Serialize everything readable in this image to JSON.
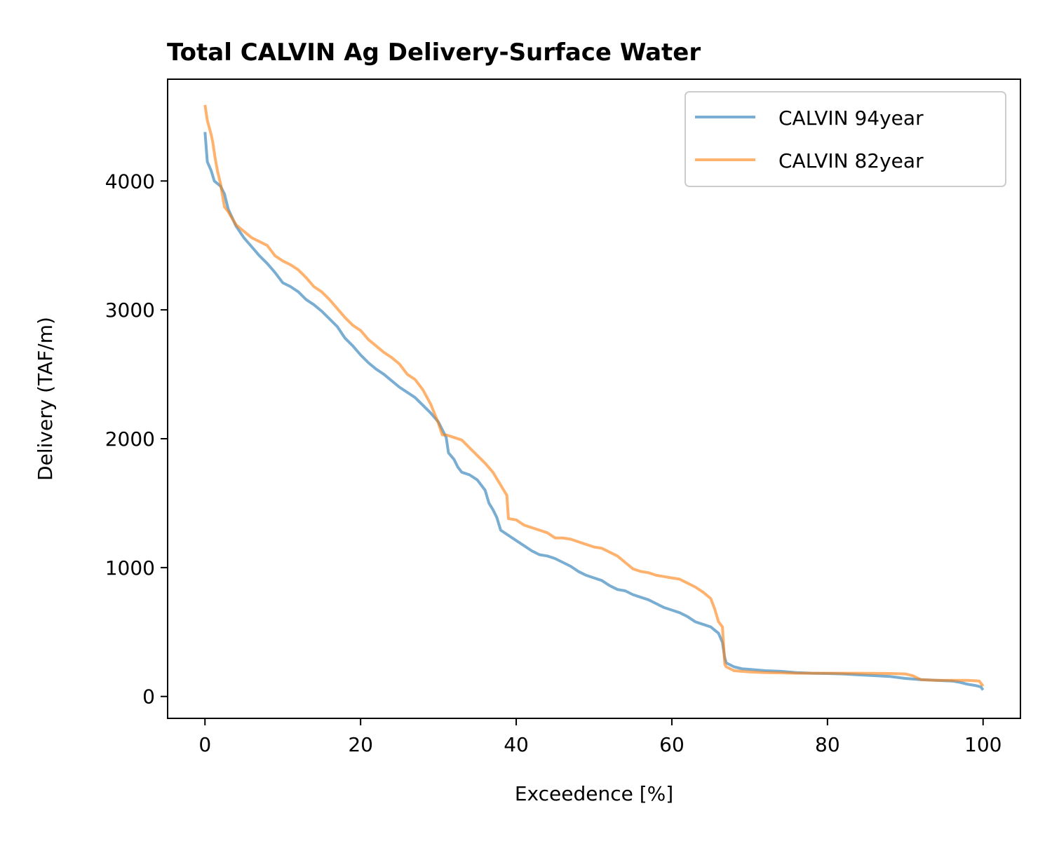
{
  "chart_data": {
    "type": "line",
    "title": "Total CALVIN Ag Delivery-Surface Water",
    "xlabel": "Exceedence [%]",
    "ylabel": "Delivery (TAF/m)",
    "xlim": [
      -4.8,
      104.8
    ],
    "ylim": [
      -170,
      4790
    ],
    "xticks": [
      0,
      20,
      40,
      60,
      80,
      100
    ],
    "yticks": [
      0,
      1000,
      2000,
      3000,
      4000
    ],
    "grid": false,
    "legend_position": "top-right",
    "series": [
      {
        "name": "CALVIN 94year",
        "color": "#1f77b4",
        "opacity": 0.6,
        "points": [
          [
            0,
            4380
          ],
          [
            0.3,
            4150
          ],
          [
            0.8,
            4080
          ],
          [
            1.2,
            4000
          ],
          [
            2,
            3960
          ],
          [
            2.5,
            3900
          ],
          [
            3,
            3780
          ],
          [
            4,
            3650
          ],
          [
            5,
            3560
          ],
          [
            6,
            3490
          ],
          [
            7,
            3420
          ],
          [
            8,
            3360
          ],
          [
            9,
            3290
          ],
          [
            10,
            3210
          ],
          [
            11,
            3180
          ],
          [
            12,
            3140
          ],
          [
            13,
            3080
          ],
          [
            14,
            3040
          ],
          [
            15,
            2990
          ],
          [
            16,
            2930
          ],
          [
            17,
            2870
          ],
          [
            18,
            2780
          ],
          [
            19,
            2720
          ],
          [
            20,
            2650
          ],
          [
            21,
            2590
          ],
          [
            22,
            2540
          ],
          [
            23,
            2500
          ],
          [
            24,
            2450
          ],
          [
            25,
            2400
          ],
          [
            26,
            2360
          ],
          [
            27,
            2320
          ],
          [
            28,
            2260
          ],
          [
            29,
            2200
          ],
          [
            30,
            2130
          ],
          [
            31,
            2010
          ],
          [
            31.3,
            1890
          ],
          [
            32,
            1840
          ],
          [
            32.5,
            1780
          ],
          [
            33,
            1740
          ],
          [
            34,
            1720
          ],
          [
            35,
            1680
          ],
          [
            36,
            1600
          ],
          [
            36.5,
            1500
          ],
          [
            37,
            1450
          ],
          [
            37.5,
            1390
          ],
          [
            38,
            1290
          ],
          [
            39,
            1250
          ],
          [
            40,
            1210
          ],
          [
            41,
            1170
          ],
          [
            42,
            1130
          ],
          [
            43,
            1100
          ],
          [
            44,
            1090
          ],
          [
            45,
            1070
          ],
          [
            46,
            1040
          ],
          [
            47,
            1010
          ],
          [
            48,
            970
          ],
          [
            49,
            940
          ],
          [
            50,
            920
          ],
          [
            51,
            900
          ],
          [
            52,
            860
          ],
          [
            53,
            830
          ],
          [
            54,
            820
          ],
          [
            55,
            790
          ],
          [
            56,
            770
          ],
          [
            57,
            750
          ],
          [
            58,
            720
          ],
          [
            59,
            690
          ],
          [
            60,
            670
          ],
          [
            61,
            650
          ],
          [
            62,
            620
          ],
          [
            63,
            580
          ],
          [
            64,
            560
          ],
          [
            65,
            540
          ],
          [
            66,
            490
          ],
          [
            66.5,
            420
          ],
          [
            66.8,
            300
          ],
          [
            67,
            260
          ],
          [
            68,
            230
          ],
          [
            69,
            215
          ],
          [
            70,
            210
          ],
          [
            72,
            200
          ],
          [
            74,
            195
          ],
          [
            76,
            185
          ],
          [
            78,
            180
          ],
          [
            80,
            178
          ],
          [
            82,
            175
          ],
          [
            84,
            168
          ],
          [
            86,
            162
          ],
          [
            88,
            155
          ],
          [
            90,
            140
          ],
          [
            92,
            130
          ],
          [
            94,
            125
          ],
          [
            96,
            120
          ],
          [
            97,
            110
          ],
          [
            98,
            95
          ],
          [
            99,
            85
          ],
          [
            99.7,
            75
          ],
          [
            100,
            50
          ]
        ]
      },
      {
        "name": "CALVIN 82year",
        "color": "#ff7f0e",
        "opacity": 0.6,
        "points": [
          [
            0,
            4590
          ],
          [
            0.3,
            4470
          ],
          [
            0.8,
            4360
          ],
          [
            1,
            4300
          ],
          [
            1.3,
            4180
          ],
          [
            1.6,
            4080
          ],
          [
            2,
            3980
          ],
          [
            2.5,
            3800
          ],
          [
            3,
            3760
          ],
          [
            4,
            3660
          ],
          [
            5,
            3610
          ],
          [
            6,
            3560
          ],
          [
            7,
            3530
          ],
          [
            8,
            3500
          ],
          [
            9,
            3420
          ],
          [
            10,
            3380
          ],
          [
            11,
            3350
          ],
          [
            12,
            3310
          ],
          [
            13,
            3250
          ],
          [
            14,
            3180
          ],
          [
            15,
            3140
          ],
          [
            16,
            3080
          ],
          [
            17,
            3010
          ],
          [
            18,
            2940
          ],
          [
            19,
            2880
          ],
          [
            20,
            2840
          ],
          [
            21,
            2770
          ],
          [
            22,
            2720
          ],
          [
            23,
            2670
          ],
          [
            24,
            2630
          ],
          [
            25,
            2580
          ],
          [
            26,
            2500
          ],
          [
            27,
            2460
          ],
          [
            28,
            2380
          ],
          [
            29,
            2270
          ],
          [
            30,
            2120
          ],
          [
            30.5,
            2030
          ],
          [
            31,
            2030
          ],
          [
            32,
            2010
          ],
          [
            33,
            1990
          ],
          [
            34,
            1930
          ],
          [
            35,
            1870
          ],
          [
            36,
            1810
          ],
          [
            37,
            1740
          ],
          [
            38,
            1640
          ],
          [
            38.8,
            1560
          ],
          [
            39,
            1380
          ],
          [
            40,
            1370
          ],
          [
            41,
            1330
          ],
          [
            42,
            1310
          ],
          [
            43,
            1290
          ],
          [
            44,
            1270
          ],
          [
            45,
            1230
          ],
          [
            46,
            1230
          ],
          [
            47,
            1220
          ],
          [
            48,
            1200
          ],
          [
            49,
            1180
          ],
          [
            50,
            1160
          ],
          [
            51,
            1150
          ],
          [
            52,
            1120
          ],
          [
            53,
            1090
          ],
          [
            54,
            1040
          ],
          [
            55,
            990
          ],
          [
            56,
            970
          ],
          [
            57,
            960
          ],
          [
            58,
            940
          ],
          [
            59,
            930
          ],
          [
            60,
            920
          ],
          [
            61,
            910
          ],
          [
            62,
            880
          ],
          [
            63,
            850
          ],
          [
            64,
            810
          ],
          [
            65,
            760
          ],
          [
            65.5,
            680
          ],
          [
            66,
            580
          ],
          [
            66.5,
            540
          ],
          [
            66.8,
            250
          ],
          [
            67,
            230
          ],
          [
            68,
            200
          ],
          [
            70,
            190
          ],
          [
            72,
            185
          ],
          [
            74,
            183
          ],
          [
            76,
            180
          ],
          [
            80,
            180
          ],
          [
            84,
            180
          ],
          [
            88,
            178
          ],
          [
            90,
            175
          ],
          [
            91,
            160
          ],
          [
            92,
            130
          ],
          [
            94,
            125
          ],
          [
            96,
            125
          ],
          [
            98,
            125
          ],
          [
            99.5,
            120
          ],
          [
            100,
            80
          ]
        ]
      }
    ]
  }
}
